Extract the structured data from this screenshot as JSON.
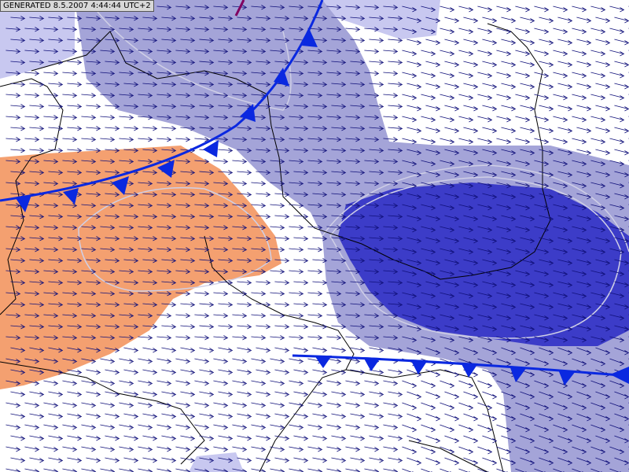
{
  "header": {
    "generated": "GENERATED 8.5.2007 4:44:44 UTC+2"
  }
}
